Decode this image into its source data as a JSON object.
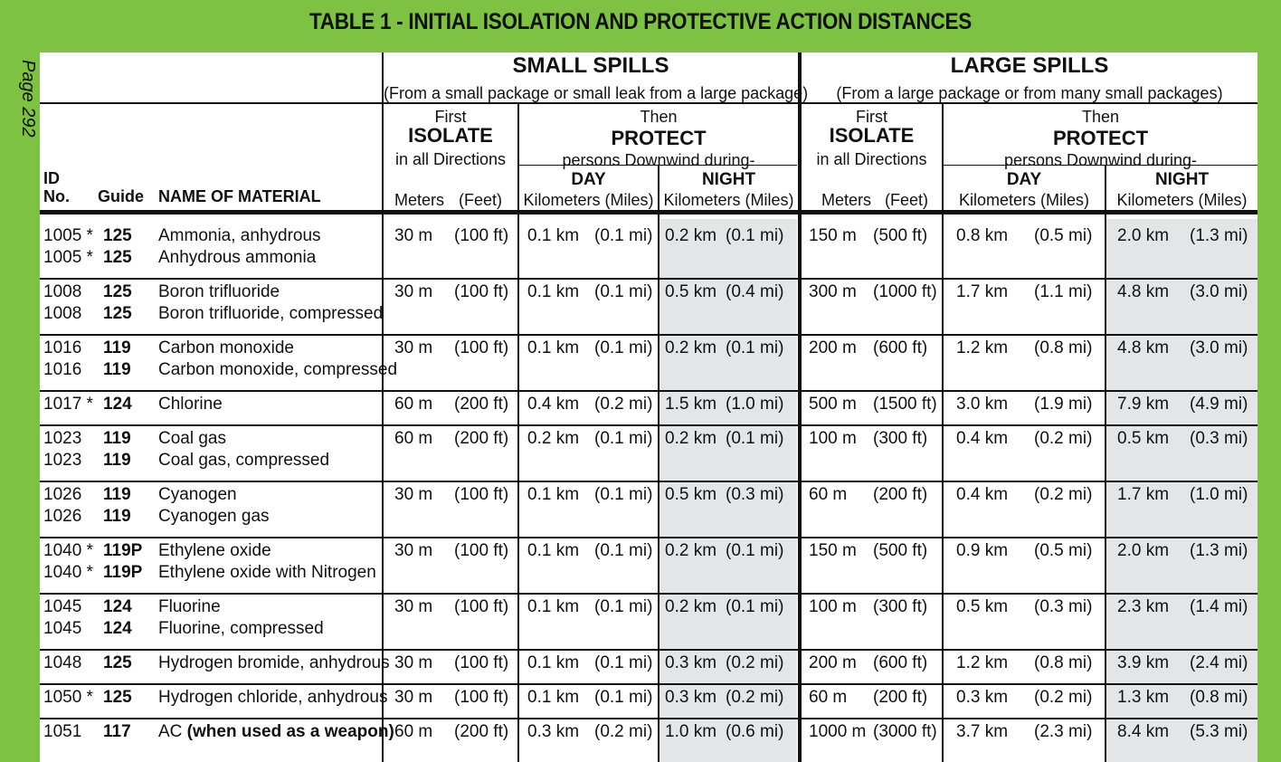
{
  "title": "TABLE 1 - INITIAL ISOLATION AND PROTECTIVE ACTION DISTANCES",
  "page_label": "Page 292",
  "header": {
    "id_no": [
      "ID",
      "No."
    ],
    "guide": "Guide",
    "name": "NAME OF MATERIAL",
    "small": {
      "title": "SMALL SPILLS",
      "sub": "(From a small package or small leak from a large package)"
    },
    "large": {
      "title": "LARGE SPILLS",
      "sub": "(From a large package or from many small packages)"
    },
    "first": "First",
    "isolate": "ISOLATE",
    "all_dirs": "in all Directions",
    "then": "Then",
    "protect": "PROTECT",
    "persons": "persons Downwind during-",
    "day": "DAY",
    "night": "NIGHT",
    "meters": "Meters",
    "feet": "(Feet)",
    "km_miles": "Kilometers (Miles)"
  },
  "rows": [
    {
      "ids": [
        "1005 *",
        "1005 *"
      ],
      "guides": [
        "125",
        "125"
      ],
      "names": [
        "Ammonia, anhydrous",
        "Anhydrous ammonia"
      ],
      "values": [
        "30 m",
        "(100 ft)",
        "0.1 km",
        "(0.1 mi)",
        "0.2 km",
        "(0.1 mi)",
        "150 m",
        "(500 ft)",
        "0.8 km",
        "(0.5 mi)",
        "2.0 km",
        "(1.3 mi)"
      ]
    },
    {
      "ids": [
        "1008",
        "1008"
      ],
      "guides": [
        "125",
        "125"
      ],
      "names": [
        "Boron trifluoride",
        "Boron trifluoride, compressed"
      ],
      "values": [
        "30 m",
        "(100 ft)",
        "0.1 km",
        "(0.1 mi)",
        "0.5 km",
        "(0.4 mi)",
        "300 m",
        "(1000 ft)",
        "1.7 km",
        "(1.1 mi)",
        "4.8 km",
        "(3.0 mi)"
      ]
    },
    {
      "ids": [
        "1016",
        "1016"
      ],
      "guides": [
        "119",
        "119"
      ],
      "names": [
        "Carbon monoxide",
        "Carbon monoxide, compressed"
      ],
      "values": [
        "30 m",
        "(100 ft)",
        "0.1 km",
        "(0.1 mi)",
        "0.2 km",
        "(0.1 mi)",
        "200 m",
        "(600 ft)",
        "1.2 km",
        "(0.8 mi)",
        "4.8 km",
        "(3.0 mi)"
      ]
    },
    {
      "ids": [
        "1017 *"
      ],
      "guides": [
        "124"
      ],
      "names": [
        "Chlorine"
      ],
      "values": [
        "60 m",
        "(200 ft)",
        "0.4 km",
        "(0.2 mi)",
        "1.5 km",
        "(1.0 mi)",
        "500 m",
        "(1500 ft)",
        "3.0 km",
        "(1.9 mi)",
        "7.9 km",
        "(4.9 mi)"
      ]
    },
    {
      "ids": [
        "1023",
        "1023"
      ],
      "guides": [
        "119",
        "119"
      ],
      "names": [
        "Coal gas",
        "Coal gas, compressed"
      ],
      "values": [
        "60 m",
        "(200 ft)",
        "0.2 km",
        "(0.1 mi)",
        "0.2 km",
        "(0.1 mi)",
        "100 m",
        "(300 ft)",
        "0.4 km",
        "(0.2 mi)",
        "0.5 km",
        "(0.3 mi)"
      ]
    },
    {
      "ids": [
        "1026",
        "1026"
      ],
      "guides": [
        "119",
        "119"
      ],
      "names": [
        "Cyanogen",
        "Cyanogen gas"
      ],
      "values": [
        "30 m",
        "(100 ft)",
        "0.1 km",
        "(0.1 mi)",
        "0.5 km",
        "(0.3 mi)",
        "60 m",
        "(200 ft)",
        "0.4 km",
        "(0.2 mi)",
        "1.7 km",
        "(1.0 mi)"
      ]
    },
    {
      "ids": [
        "1040 *",
        "1040 *"
      ],
      "guides": [
        "119P",
        "119P"
      ],
      "names": [
        "Ethylene oxide",
        "Ethylene oxide with Nitrogen"
      ],
      "values": [
        "30 m",
        "(100 ft)",
        "0.1 km",
        "(0.1 mi)",
        "0.2 km",
        "(0.1 mi)",
        "150 m",
        "(500 ft)",
        "0.9 km",
        "(0.5 mi)",
        "2.0 km",
        "(1.3 mi)"
      ]
    },
    {
      "ids": [
        "1045",
        "1045"
      ],
      "guides": [
        "124",
        "124"
      ],
      "names": [
        "Fluorine",
        "Fluorine, compressed"
      ],
      "values": [
        "30 m",
        "(100 ft)",
        "0.1 km",
        "(0.1 mi)",
        "0.2 km",
        "(0.1 mi)",
        "100 m",
        "(300 ft)",
        "0.5 km",
        "(0.3 mi)",
        "2.3 km",
        "(1.4 mi)"
      ]
    },
    {
      "ids": [
        "1048"
      ],
      "guides": [
        "125"
      ],
      "names": [
        "Hydrogen bromide, anhydrous"
      ],
      "values": [
        "30 m",
        "(100 ft)",
        "0.1 km",
        "(0.1 mi)",
        "0.3 km",
        "(0.2 mi)",
        "200 m",
        "(600 ft)",
        "1.2 km",
        "(0.8 mi)",
        "3.9 km",
        "(2.4 mi)"
      ]
    },
    {
      "ids": [
        "1050 *"
      ],
      "guides": [
        "125"
      ],
      "names": [
        "Hydrogen chloride, anhydrous"
      ],
      "values": [
        "30 m",
        "(100 ft)",
        "0.1 km",
        "(0.1 mi)",
        "0.3 km",
        "(0.2 mi)",
        "60 m",
        "(200 ft)",
        "0.3 km",
        "(0.2 mi)",
        "1.3 km",
        "(0.8 mi)"
      ]
    },
    {
      "ids": [
        "1051"
      ],
      "guides": [
        "117"
      ],
      "names": [
        "AC"
      ],
      "name_suffix": "(when used as a weapon)",
      "values": [
        "60 m",
        "(200 ft)",
        "0.3 km",
        "(0.2 mi)",
        "1.0 km",
        "(0.6 mi)",
        "1000 m",
        "(3000 ft)",
        "3.7 km",
        "(2.3 mi)",
        "8.4 km",
        "(5.3 mi)"
      ]
    }
  ]
}
